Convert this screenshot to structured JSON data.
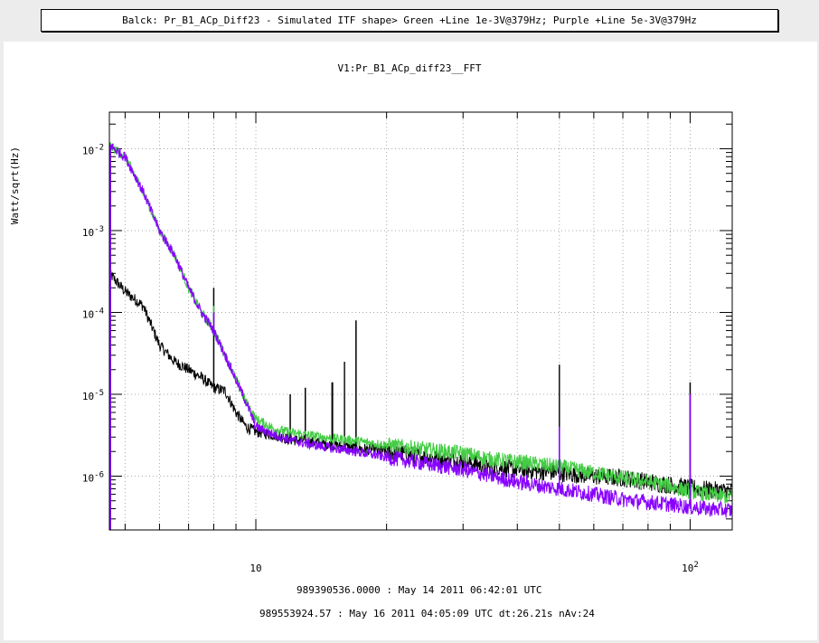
{
  "window": {
    "banner": "Balck: Pr_B1_ACp_Diff23 - Simulated ITF shape> Green +Line 1e-3V@379Hz; Purple +Line 5e-3V@379Hz"
  },
  "footer": {
    "line1": "989390536.0000 : May 14 2011 06:42:01 UTC",
    "line2": "989553924.57 : May 16 2011 04:05:09 UTC dt:26.21s nAv:24"
  },
  "chart_data": {
    "type": "line",
    "title": "V1:Pr_B1_ACp_diff23__FFT",
    "xlabel": "",
    "ylabel": "Watt/sqrt(Hz)",
    "xscale": "log",
    "yscale": "log",
    "xlim": [
      4.6,
      125
    ],
    "ylim": [
      2.2e-07,
      0.028
    ],
    "grid": true,
    "x_ticks": [
      {
        "value": 10,
        "base": "10",
        "exp": ""
      },
      {
        "value": 100,
        "base": "10",
        "exp": "2"
      }
    ],
    "y_ticks": [
      {
        "value": 1e-06,
        "base": "10",
        "exp": "-6"
      },
      {
        "value": 1e-05,
        "base": "10",
        "exp": "-5"
      },
      {
        "value": 0.0001,
        "base": "10",
        "exp": "-4"
      },
      {
        "value": 0.001,
        "base": "10",
        "exp": "-3"
      },
      {
        "value": 0.01,
        "base": "10",
        "exp": "-2"
      }
    ],
    "series": [
      {
        "color": "#000000",
        "x": [
          4.6,
          5.0,
          5.5,
          6.0,
          6.5,
          7.0,
          7.5,
          8.0,
          8.5,
          9.0,
          9.5,
          10.0,
          11,
          12,
          13,
          15,
          17,
          20,
          25,
          30,
          35,
          40,
          50,
          60,
          70,
          80,
          90,
          100,
          110,
          125
        ],
        "y": [
          0.0003,
          0.00018,
          0.00012,
          4e-05,
          2.5e-05,
          2e-05,
          1.6e-05,
          1.2e-05,
          1.1e-05,
          6e-06,
          4e-06,
          3.5e-06,
          3.2e-06,
          2.8e-06,
          2.7e-06,
          2.4e-06,
          2.2e-06,
          2e-06,
          1.7e-06,
          1.5e-06,
          1.3e-06,
          1.2e-06,
          1.1e-06,
          1e-06,
          9.5e-07,
          8.5e-07,
          7.8e-07,
          7.2e-07,
          6.8e-07,
          6.5e-07
        ],
        "peaks": [
          [
            8.0,
            0.0002
          ],
          [
            12.0,
            1e-05
          ],
          [
            13.0,
            1.2e-05
          ],
          [
            15.0,
            1.4e-05
          ],
          [
            16.0,
            2.5e-05
          ],
          [
            17.0,
            8e-05
          ],
          [
            50.0,
            2.3e-05
          ],
          [
            100.0,
            1.4e-05
          ]
        ]
      },
      {
        "color": "#44cc44",
        "x": [
          4.6,
          5.0,
          5.5,
          6.0,
          6.5,
          7.0,
          7.5,
          8.0,
          8.5,
          9.0,
          9.5,
          10.0,
          11,
          12,
          13,
          15,
          17,
          20,
          25,
          30,
          35,
          40,
          50,
          60,
          70,
          80,
          90,
          100,
          110,
          125
        ],
        "y": [
          0.011,
          0.008,
          0.003,
          0.001,
          0.0005,
          0.0002,
          0.0001,
          6e-05,
          3e-05,
          1.5e-05,
          8e-06,
          5e-06,
          3.8e-06,
          3.4e-06,
          3.2e-06,
          2.9e-06,
          2.7e-06,
          2.4e-06,
          2.1e-06,
          1.9e-06,
          1.6e-06,
          1.5e-06,
          1.3e-06,
          1.1e-06,
          9.5e-07,
          8.5e-07,
          7.5e-07,
          6.5e-07,
          6e-07,
          5.5e-07
        ],
        "peaks": [
          [
            8.0,
            0.00012
          ],
          [
            50.0,
            4e-06
          ]
        ]
      },
      {
        "color": "#8800ff",
        "x": [
          4.6,
          5.0,
          5.5,
          6.0,
          6.5,
          7.0,
          7.5,
          8.0,
          8.5,
          9.0,
          9.5,
          10.0,
          11,
          12,
          13,
          15,
          17,
          20,
          25,
          30,
          35,
          40,
          50,
          60,
          70,
          80,
          90,
          100,
          110,
          125
        ],
        "y": [
          0.011,
          0.008,
          0.003,
          0.001,
          0.0005,
          0.0002,
          0.0001,
          6e-05,
          3e-05,
          1.5e-05,
          8e-06,
          4e-06,
          3.2e-06,
          2.8e-06,
          2.5e-06,
          2.2e-06,
          2e-06,
          1.7e-06,
          1.4e-06,
          1.2e-06,
          1e-06,
          8.5e-07,
          7e-07,
          6e-07,
          5.2e-07,
          4.8e-07,
          4.5e-07,
          4.2e-07,
          4e-07,
          3.8e-07
        ],
        "peaks": [
          [
            8.0,
            0.0001
          ],
          [
            50.0,
            4e-06
          ],
          [
            100.0,
            1e-05
          ]
        ]
      }
    ]
  }
}
